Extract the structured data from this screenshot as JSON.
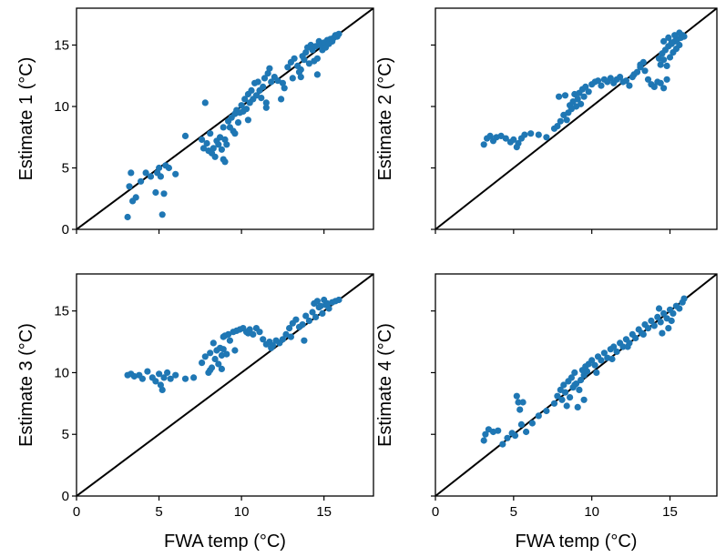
{
  "colors": {
    "points": "#1f77b4",
    "diagonal": "#000000",
    "frame": "#000000"
  },
  "chart_data": [
    {
      "type": "scatter",
      "title": "",
      "xlabel": "",
      "ylabel": "Estimate 1 (°C)",
      "xlim": [
        0,
        18
      ],
      "ylim": [
        0,
        18
      ],
      "xticks": [
        0,
        5,
        10,
        15
      ],
      "yticks": [
        0,
        5,
        10,
        15
      ],
      "x_tick_labels_visible": false,
      "y_tick_labels_visible": true,
      "reference_line": "y=x",
      "grid": false,
      "points": [
        [
          3.1,
          1.0
        ],
        [
          3.2,
          3.5
        ],
        [
          3.3,
          4.6
        ],
        [
          3.4,
          2.3
        ],
        [
          3.6,
          2.6
        ],
        [
          3.9,
          3.9
        ],
        [
          4.2,
          4.6
        ],
        [
          4.5,
          4.3
        ],
        [
          4.8,
          3.0
        ],
        [
          4.9,
          4.6
        ],
        [
          5.0,
          5.0
        ],
        [
          5.1,
          4.3
        ],
        [
          5.2,
          1.2
        ],
        [
          5.3,
          2.9
        ],
        [
          5.4,
          5.2
        ],
        [
          5.6,
          5.0
        ],
        [
          6.0,
          4.5
        ],
        [
          6.6,
          7.6
        ],
        [
          7.6,
          7.3
        ],
        [
          7.7,
          6.6
        ],
        [
          7.8,
          10.3
        ],
        [
          7.9,
          7.0
        ],
        [
          8.0,
          6.4
        ],
        [
          8.1,
          7.8
        ],
        [
          8.2,
          6.2
        ],
        [
          8.3,
          6.6
        ],
        [
          8.4,
          5.9
        ],
        [
          8.5,
          7.2
        ],
        [
          8.6,
          6.9
        ],
        [
          8.7,
          7.5
        ],
        [
          8.8,
          6.5
        ],
        [
          8.9,
          5.7
        ],
        [
          9.0,
          5.5
        ],
        [
          9.0,
          7.3
        ],
        [
          9.1,
          6.9
        ],
        [
          9.2,
          8.8
        ],
        [
          9.3,
          8.3
        ],
        [
          9.4,
          9.1
        ],
        [
          9.5,
          8.0
        ],
        [
          9.6,
          9.4
        ],
        [
          9.7,
          9.7
        ],
        [
          9.8,
          8.7
        ],
        [
          9.9,
          9.5
        ],
        [
          10.0,
          10.1
        ],
        [
          10.1,
          9.6
        ],
        [
          10.2,
          10.6
        ],
        [
          10.3,
          9.8
        ],
        [
          10.4,
          11.0
        ],
        [
          10.5,
          10.3
        ],
        [
          10.6,
          11.3
        ],
        [
          10.7,
          10.6
        ],
        [
          10.8,
          11.9
        ],
        [
          10.9,
          10.9
        ],
        [
          11.0,
          12.0
        ],
        [
          11.1,
          11.3
        ],
        [
          11.2,
          10.7
        ],
        [
          11.3,
          11.6
        ],
        [
          11.4,
          12.3
        ],
        [
          11.5,
          9.9
        ],
        [
          11.6,
          12.7
        ],
        [
          11.7,
          13.1
        ],
        [
          11.8,
          12.0
        ],
        [
          12.0,
          12.4
        ],
        [
          12.2,
          12.1
        ],
        [
          12.5,
          11.9
        ],
        [
          12.6,
          11.5
        ],
        [
          12.8,
          13.2
        ],
        [
          13.0,
          13.6
        ],
        [
          13.1,
          12.3
        ],
        [
          13.2,
          13.9
        ],
        [
          13.4,
          13.3
        ],
        [
          13.5,
          12.8
        ],
        [
          13.6,
          13.0
        ],
        [
          13.7,
          14.1
        ],
        [
          13.8,
          13.8
        ],
        [
          13.9,
          14.4
        ],
        [
          14.0,
          14.8
        ],
        [
          14.1,
          13.5
        ],
        [
          14.2,
          15.0
        ],
        [
          14.3,
          14.6
        ],
        [
          14.4,
          13.7
        ],
        [
          14.5,
          14.9
        ],
        [
          14.6,
          13.9
        ],
        [
          14.7,
          15.3
        ],
        [
          14.8,
          15.0
        ],
        [
          14.9,
          14.6
        ],
        [
          15.0,
          15.2
        ],
        [
          15.1,
          14.8
        ],
        [
          15.2,
          15.4
        ],
        [
          15.3,
          15.1
        ],
        [
          15.4,
          15.5
        ],
        [
          15.5,
          15.3
        ],
        [
          15.6,
          15.6
        ],
        [
          15.7,
          15.8
        ],
        [
          15.8,
          15.7
        ],
        [
          15.9,
          15.9
        ],
        [
          14.6,
          12.6
        ],
        [
          13.6,
          12.4
        ],
        [
          12.4,
          10.6
        ],
        [
          11.5,
          10.3
        ],
        [
          10.4,
          8.9
        ],
        [
          9.6,
          7.8
        ],
        [
          8.9,
          8.3
        ]
      ]
    },
    {
      "type": "scatter",
      "title": "",
      "xlabel": "",
      "ylabel": "Estimate 2 (°C)",
      "xlim": [
        0,
        18
      ],
      "ylim": [
        0,
        18
      ],
      "xticks": [
        0,
        5,
        10,
        15
      ],
      "yticks": [
        0,
        5,
        10,
        15
      ],
      "x_tick_labels_visible": false,
      "y_tick_labels_visible": false,
      "reference_line": "y=x",
      "grid": false,
      "points": [
        [
          3.1,
          6.9
        ],
        [
          3.3,
          7.4
        ],
        [
          3.5,
          7.6
        ],
        [
          3.7,
          7.2
        ],
        [
          3.9,
          7.5
        ],
        [
          4.2,
          7.6
        ],
        [
          4.5,
          7.4
        ],
        [
          4.8,
          7.1
        ],
        [
          5.0,
          7.3
        ],
        [
          5.2,
          6.7
        ],
        [
          5.3,
          7.0
        ],
        [
          5.5,
          7.4
        ],
        [
          5.7,
          7.7
        ],
        [
          6.1,
          7.8
        ],
        [
          6.6,
          7.7
        ],
        [
          7.1,
          7.5
        ],
        [
          7.6,
          8.2
        ],
        [
          7.8,
          8.4
        ],
        [
          7.9,
          10.8
        ],
        [
          8.0,
          8.8
        ],
        [
          8.2,
          9.3
        ],
        [
          8.3,
          10.9
        ],
        [
          8.4,
          8.9
        ],
        [
          8.5,
          9.5
        ],
        [
          8.6,
          10.1
        ],
        [
          8.7,
          9.8
        ],
        [
          8.8,
          10.4
        ],
        [
          8.9,
          11.0
        ],
        [
          9.0,
          10.0
        ],
        [
          9.1,
          10.6
        ],
        [
          9.2,
          11.1
        ],
        [
          9.3,
          10.2
        ],
        [
          9.4,
          11.4
        ],
        [
          9.5,
          10.8
        ],
        [
          9.6,
          11.6
        ],
        [
          9.8,
          11.2
        ],
        [
          10.0,
          11.8
        ],
        [
          10.2,
          12.0
        ],
        [
          10.4,
          12.1
        ],
        [
          10.6,
          11.7
        ],
        [
          10.8,
          12.2
        ],
        [
          11.0,
          12.0
        ],
        [
          11.2,
          12.3
        ],
        [
          11.4,
          11.9
        ],
        [
          11.6,
          12.2
        ],
        [
          11.8,
          12.4
        ],
        [
          12.0,
          12.0
        ],
        [
          12.2,
          12.1
        ],
        [
          12.4,
          11.7
        ],
        [
          12.6,
          12.4
        ],
        [
          12.9,
          12.8
        ],
        [
          13.1,
          13.2
        ],
        [
          13.3,
          13.6
        ],
        [
          13.4,
          12.9
        ],
        [
          13.6,
          12.2
        ],
        [
          13.8,
          11.8
        ],
        [
          14.0,
          11.6
        ],
        [
          14.2,
          12.0
        ],
        [
          14.4,
          11.9
        ],
        [
          14.6,
          11.5
        ],
        [
          14.8,
          12.2
        ],
        [
          14.3,
          13.9
        ],
        [
          14.4,
          13.4
        ],
        [
          14.5,
          14.3
        ],
        [
          14.6,
          13.8
        ],
        [
          14.7,
          14.6
        ],
        [
          14.8,
          13.3
        ],
        [
          14.9,
          14.9
        ],
        [
          15.0,
          14.0
        ],
        [
          15.1,
          15.1
        ],
        [
          15.2,
          14.4
        ],
        [
          15.3,
          15.3
        ],
        [
          15.4,
          14.7
        ],
        [
          15.5,
          15.5
        ],
        [
          15.6,
          15.0
        ],
        [
          15.7,
          15.6
        ],
        [
          15.8,
          15.8
        ],
        [
          15.9,
          15.7
        ],
        [
          14.6,
          15.3
        ],
        [
          14.9,
          15.6
        ],
        [
          15.1,
          15.2
        ],
        [
          15.3,
          15.8
        ],
        [
          15.6,
          16.0
        ],
        [
          13.1,
          13.4
        ],
        [
          12.7,
          12.6
        ]
      ]
    },
    {
      "type": "scatter",
      "title": "",
      "xlabel": "FWA temp (°C)",
      "ylabel": "Estimate 3 (°C)",
      "xlim": [
        0,
        18
      ],
      "ylim": [
        0,
        18
      ],
      "xticks": [
        0,
        5,
        10,
        15
      ],
      "yticks": [
        0,
        5,
        10,
        15
      ],
      "x_tick_labels_visible": true,
      "y_tick_labels_visible": true,
      "reference_line": "y=x",
      "grid": false,
      "points": [
        [
          3.1,
          9.8
        ],
        [
          3.3,
          9.9
        ],
        [
          3.5,
          9.7
        ],
        [
          3.8,
          9.8
        ],
        [
          4.0,
          9.5
        ],
        [
          4.3,
          10.1
        ],
        [
          4.6,
          9.6
        ],
        [
          4.8,
          9.3
        ],
        [
          5.0,
          9.9
        ],
        [
          5.1,
          9.0
        ],
        [
          5.2,
          8.6
        ],
        [
          5.3,
          9.6
        ],
        [
          5.5,
          10.0
        ],
        [
          5.7,
          9.5
        ],
        [
          6.0,
          9.8
        ],
        [
          6.6,
          9.5
        ],
        [
          7.1,
          9.6
        ],
        [
          7.6,
          10.8
        ],
        [
          7.8,
          11.3
        ],
        [
          8.0,
          10.0
        ],
        [
          8.1,
          11.6
        ],
        [
          8.2,
          10.4
        ],
        [
          8.3,
          12.4
        ],
        [
          8.4,
          11.1
        ],
        [
          8.5,
          11.8
        ],
        [
          8.6,
          10.7
        ],
        [
          8.7,
          12.0
        ],
        [
          8.8,
          11.4
        ],
        [
          8.9,
          11.9
        ],
        [
          9.0,
          13.0
        ],
        [
          9.1,
          11.5
        ],
        [
          9.3,
          12.6
        ],
        [
          9.5,
          13.3
        ],
        [
          9.7,
          13.4
        ],
        [
          9.9,
          13.5
        ],
        [
          10.1,
          13.6
        ],
        [
          10.3,
          13.3
        ],
        [
          10.5,
          13.5
        ],
        [
          10.7,
          13.1
        ],
        [
          10.9,
          13.6
        ],
        [
          11.1,
          13.3
        ],
        [
          11.3,
          12.7
        ],
        [
          11.5,
          12.3
        ],
        [
          11.7,
          12.5
        ],
        [
          11.9,
          12.2
        ],
        [
          12.1,
          12.6
        ],
        [
          12.3,
          12.4
        ],
        [
          12.5,
          12.7
        ],
        [
          12.7,
          13.1
        ],
        [
          12.9,
          13.6
        ],
        [
          13.1,
          14.0
        ],
        [
          13.3,
          14.3
        ],
        [
          13.5,
          13.7
        ],
        [
          13.7,
          13.9
        ],
        [
          13.9,
          14.6
        ],
        [
          14.1,
          14.2
        ],
        [
          14.3,
          14.9
        ],
        [
          14.5,
          14.5
        ],
        [
          14.7,
          15.3
        ],
        [
          14.9,
          14.8
        ],
        [
          15.1,
          15.5
        ],
        [
          15.3,
          15.2
        ],
        [
          15.5,
          15.7
        ],
        [
          15.7,
          15.8
        ],
        [
          15.9,
          15.9
        ],
        [
          14.4,
          15.6
        ],
        [
          14.6,
          15.8
        ],
        [
          14.8,
          15.4
        ],
        [
          15.0,
          15.9
        ],
        [
          15.2,
          15.6
        ],
        [
          13.8,
          12.6
        ],
        [
          13.0,
          12.9
        ],
        [
          11.8,
          12.0
        ],
        [
          10.4,
          13.2
        ],
        [
          9.6,
          11.8
        ],
        [
          8.8,
          10.3
        ],
        [
          8.1,
          10.2
        ],
        [
          8.9,
          12.9
        ],
        [
          9.2,
          13.1
        ]
      ]
    },
    {
      "type": "scatter",
      "title": "",
      "xlabel": "FWA temp (°C)",
      "ylabel": "Estimate 4 (°C)",
      "xlim": [
        0,
        18
      ],
      "ylim": [
        0,
        18
      ],
      "xticks": [
        0,
        5,
        10,
        15
      ],
      "yticks": [
        0,
        5,
        10,
        15
      ],
      "x_tick_labels_visible": true,
      "y_tick_labels_visible": false,
      "reference_line": "y=x",
      "grid": false,
      "points": [
        [
          3.1,
          4.5
        ],
        [
          3.2,
          5.0
        ],
        [
          3.4,
          5.4
        ],
        [
          3.7,
          5.2
        ],
        [
          4.0,
          5.3
        ],
        [
          4.3,
          4.2
        ],
        [
          4.6,
          4.7
        ],
        [
          4.9,
          5.1
        ],
        [
          5.1,
          4.9
        ],
        [
          5.2,
          8.1
        ],
        [
          5.3,
          7.6
        ],
        [
          5.4,
          7.0
        ],
        [
          5.5,
          5.8
        ],
        [
          5.6,
          7.6
        ],
        [
          5.8,
          5.2
        ],
        [
          6.2,
          5.9
        ],
        [
          6.6,
          6.5
        ],
        [
          7.1,
          6.9
        ],
        [
          7.6,
          7.5
        ],
        [
          7.8,
          8.1
        ],
        [
          8.0,
          8.6
        ],
        [
          8.1,
          7.8
        ],
        [
          8.2,
          9.0
        ],
        [
          8.3,
          8.4
        ],
        [
          8.4,
          7.3
        ],
        [
          8.5,
          9.3
        ],
        [
          8.6,
          8.0
        ],
        [
          8.7,
          9.6
        ],
        [
          8.8,
          8.8
        ],
        [
          8.9,
          10.0
        ],
        [
          9.0,
          9.1
        ],
        [
          9.1,
          7.2
        ],
        [
          9.2,
          8.6
        ],
        [
          9.3,
          9.4
        ],
        [
          9.4,
          10.2
        ],
        [
          9.5,
          9.8
        ],
        [
          9.6,
          10.5
        ],
        [
          9.7,
          10.1
        ],
        [
          9.8,
          10.7
        ],
        [
          10.0,
          11.0
        ],
        [
          10.2,
          10.6
        ],
        [
          10.4,
          11.3
        ],
        [
          10.6,
          11.0
        ],
        [
          10.8,
          11.6
        ],
        [
          11.0,
          11.2
        ],
        [
          11.2,
          11.9
        ],
        [
          11.4,
          12.1
        ],
        [
          11.6,
          11.7
        ],
        [
          11.8,
          12.4
        ],
        [
          12.0,
          12.1
        ],
        [
          12.2,
          12.7
        ],
        [
          12.4,
          12.4
        ],
        [
          12.6,
          13.1
        ],
        [
          12.8,
          12.8
        ],
        [
          13.0,
          13.5
        ],
        [
          13.2,
          13.2
        ],
        [
          13.4,
          13.9
        ],
        [
          13.6,
          13.6
        ],
        [
          13.8,
          14.2
        ],
        [
          14.0,
          13.8
        ],
        [
          14.2,
          14.5
        ],
        [
          14.4,
          14.1
        ],
        [
          14.6,
          14.8
        ],
        [
          14.8,
          14.4
        ],
        [
          15.0,
          15.1
        ],
        [
          15.2,
          14.8
        ],
        [
          15.4,
          15.4
        ],
        [
          15.6,
          15.2
        ],
        [
          15.8,
          15.7
        ],
        [
          15.9,
          16.0
        ],
        [
          14.5,
          13.2
        ],
        [
          14.9,
          13.6
        ],
        [
          15.1,
          14.2
        ],
        [
          13.3,
          13.1
        ],
        [
          12.3,
          12.1
        ],
        [
          11.3,
          11.1
        ],
        [
          10.3,
          10.0
        ],
        [
          9.5,
          7.8
        ],
        [
          8.9,
          9.0
        ],
        [
          14.3,
          15.2
        ]
      ]
    }
  ]
}
